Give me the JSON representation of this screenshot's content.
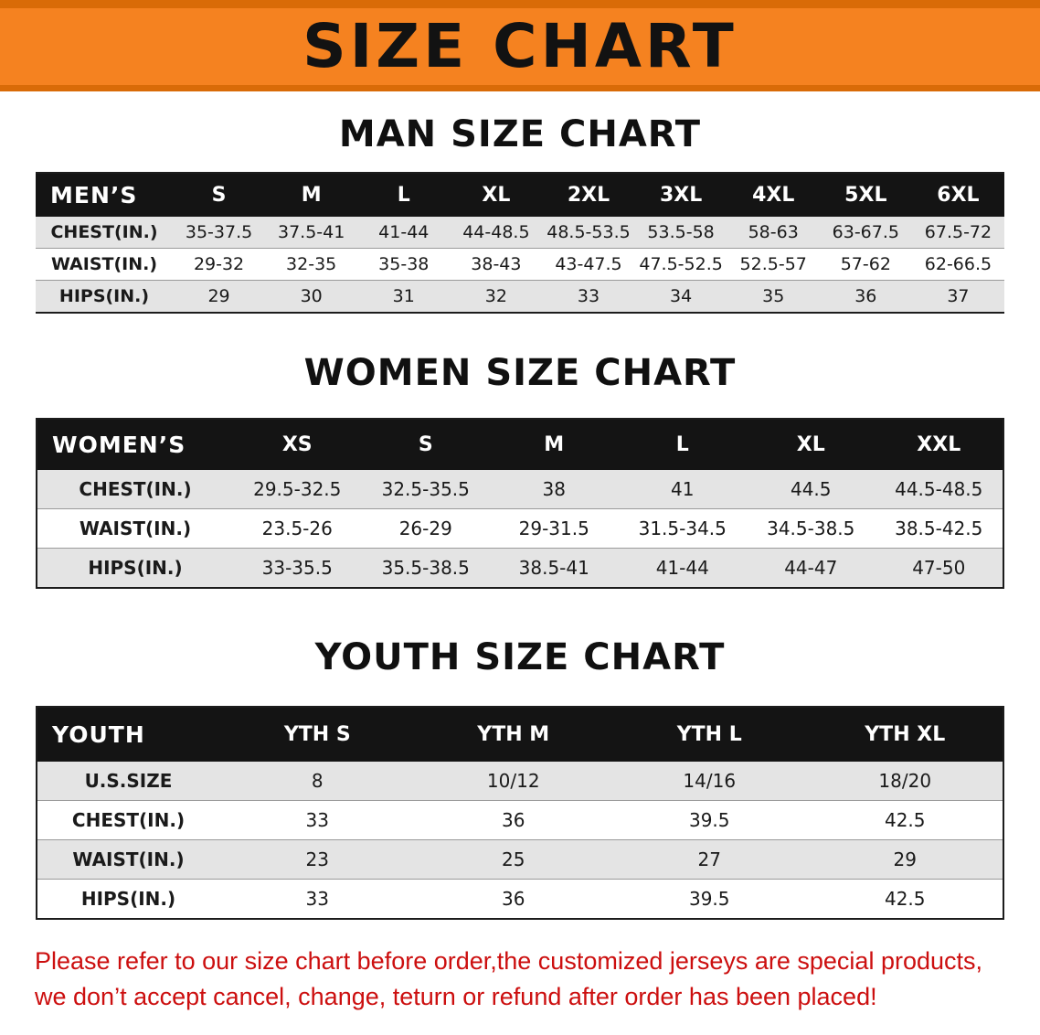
{
  "banner": {
    "title": "SIZE CHART"
  },
  "sections": [
    {
      "heading": "MAN SIZE CHART",
      "table": {
        "header": [
          "MEN’S",
          "S",
          "M",
          "L",
          "XL",
          "2XL",
          "3XL",
          "4XL",
          "5XL",
          "6XL"
        ],
        "rows": [
          [
            "CHEST(IN.)",
            "35-37.5",
            "37.5-41",
            "41-44",
            "44-48.5",
            "48.5-53.5",
            "53.5-58",
            "58-63",
            "63-67.5",
            "67.5-72"
          ],
          [
            "WAIST(IN.)",
            "29-32",
            "32-35",
            "35-38",
            "38-43",
            "43-47.5",
            "47.5-52.5",
            "52.5-57",
            "57-62",
            "62-66.5"
          ],
          [
            "HIPS(IN.)",
            "29",
            "30",
            "31",
            "32",
            "33",
            "34",
            "35",
            "36",
            "37"
          ]
        ]
      }
    },
    {
      "heading": "WOMEN SIZE CHART",
      "table": {
        "header": [
          "WOMEN’S",
          "XS",
          "S",
          "M",
          "L",
          "XL",
          "XXL"
        ],
        "rows": [
          [
            "CHEST(IN.)",
            "29.5-32.5",
            "32.5-35.5",
            "38",
            "41",
            "44.5",
            "44.5-48.5"
          ],
          [
            "WAIST(IN.)",
            "23.5-26",
            "26-29",
            "29-31.5",
            "31.5-34.5",
            "34.5-38.5",
            "38.5-42.5"
          ],
          [
            "HIPS(IN.)",
            "33-35.5",
            "35.5-38.5",
            "38.5-41",
            "41-44",
            "44-47",
            "47-50"
          ]
        ]
      }
    },
    {
      "heading": "YOUTH SIZE CHART",
      "table": {
        "header": [
          "YOUTH",
          "YTH S",
          "YTH M",
          "YTH L",
          "YTH XL"
        ],
        "rows": [
          [
            "U.S.SIZE",
            "8",
            "10/12",
            "14/16",
            "18/20"
          ],
          [
            "CHEST(IN.)",
            "33",
            "36",
            "39.5",
            "42.5"
          ],
          [
            "WAIST(IN.)",
            "23",
            "25",
            "27",
            "29"
          ],
          [
            "HIPS(IN.)",
            "33",
            "36",
            "39.5",
            "42.5"
          ]
        ]
      }
    }
  ],
  "footer": {
    "text_line1": "Please refer to our size chart before order,the customized jerseys are special products,",
    "text_line2": "we don’t accept cancel, change, teturn or refund after order has been placed!"
  },
  "colors": {
    "banner_orange": "#f58220",
    "banner_border_orange": "#d96b07",
    "table_header_black": "#141414",
    "row_stripe_gray": "#e4e4e4",
    "disclaimer_red": "#cc0f0f"
  }
}
